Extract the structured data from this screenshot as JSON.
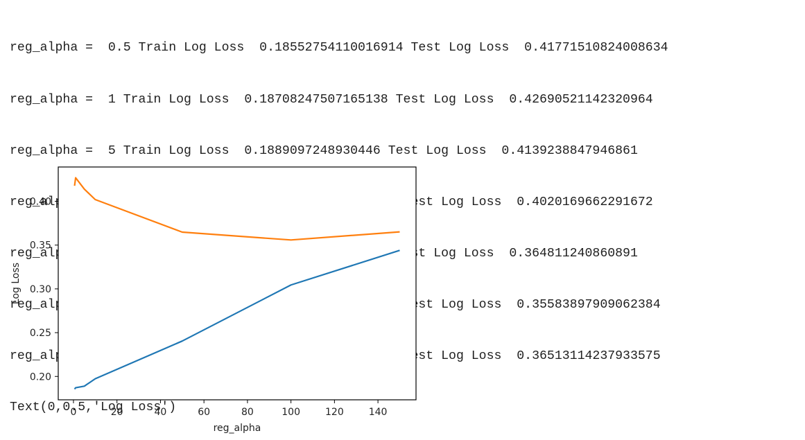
{
  "output": {
    "lines": [
      "reg_alpha =  0.5 Train Log Loss  0.18552754110016914 Test Log Loss  0.41771510824008634",
      "reg_alpha =  1 Train Log Loss  0.18708247507165138 Test Log Loss  0.42690521142320964",
      "reg_alpha =  5 Train Log Loss  0.1889097248930446 Test Log Loss  0.4139238847946861",
      "reg_alpha =  10 Train Log Loss  0.19732091498184656 Test Log Loss  0.4020169662291672",
      "reg_alpha =  50 Train Log Loss  0.2404195343979278 Test Log Loss  0.364811240860891",
      "reg_alpha =  100 Train Log Loss  0.3044636385472295 Test Log Loss  0.35583897909062384",
      "reg_alpha =  150 Train Log Loss  0.3439979601721529 Test Log Loss  0.36513114237933575",
      "Text(0,0.5,'Log Loss')"
    ]
  },
  "chart_data": {
    "type": "line",
    "x": [
      0.5,
      1,
      5,
      10,
      50,
      100,
      150
    ],
    "series": [
      {
        "color": "#1f77b4",
        "values": [
          0.18552754110016914,
          0.18708247507165138,
          0.1889097248930446,
          0.19732091498184656,
          0.2404195343979278,
          0.3044636385472295,
          0.3439979601721529
        ]
      },
      {
        "color": "#ff7f0e",
        "values": [
          0.41771510824008634,
          0.42690521142320964,
          0.4139238847946861,
          0.4020169662291672,
          0.364811240860891,
          0.35583897909062384,
          0.36513114237933575
        ]
      }
    ],
    "xlabel": "reg_alpha",
    "ylabel": "Log Loss",
    "xticks": [
      0,
      20,
      40,
      60,
      80,
      100,
      120,
      140
    ],
    "yticks": [
      "0.20",
      "0.25",
      "0.30",
      "0.35",
      "0.40"
    ],
    "xlim": [
      -7.0,
      157.5
    ],
    "ylim": [
      0.1733,
      0.4392
    ],
    "grid": false
  }
}
